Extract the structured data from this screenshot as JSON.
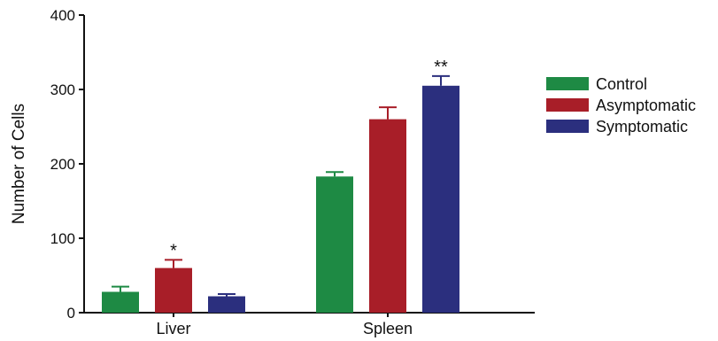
{
  "chart_data": {
    "type": "bar",
    "title": "",
    "xlabel": "",
    "ylabel": "Number of Cells",
    "ylim": [
      0,
      400
    ],
    "yticks": [
      0,
      100,
      200,
      300,
      400
    ],
    "grid": false,
    "legend_position": "right",
    "categories": [
      "Liver",
      "Spleen"
    ],
    "series": [
      {
        "name": "Control",
        "color": "#1e8a44",
        "values": [
          28,
          183
        ],
        "errors": [
          7,
          6
        ]
      },
      {
        "name": "Asymptomatic",
        "color": "#a81e28",
        "values": [
          60,
          260
        ],
        "errors": [
          11,
          16
        ]
      },
      {
        "name": "Symptomatic",
        "color": "#2b2f7e",
        "values": [
          22,
          305
        ],
        "errors": [
          3,
          13
        ]
      }
    ],
    "annotations": [
      {
        "category": "Liver",
        "series": "Asymptomatic",
        "text": "*"
      },
      {
        "category": "Spleen",
        "series": "Symptomatic",
        "text": "**"
      }
    ]
  }
}
